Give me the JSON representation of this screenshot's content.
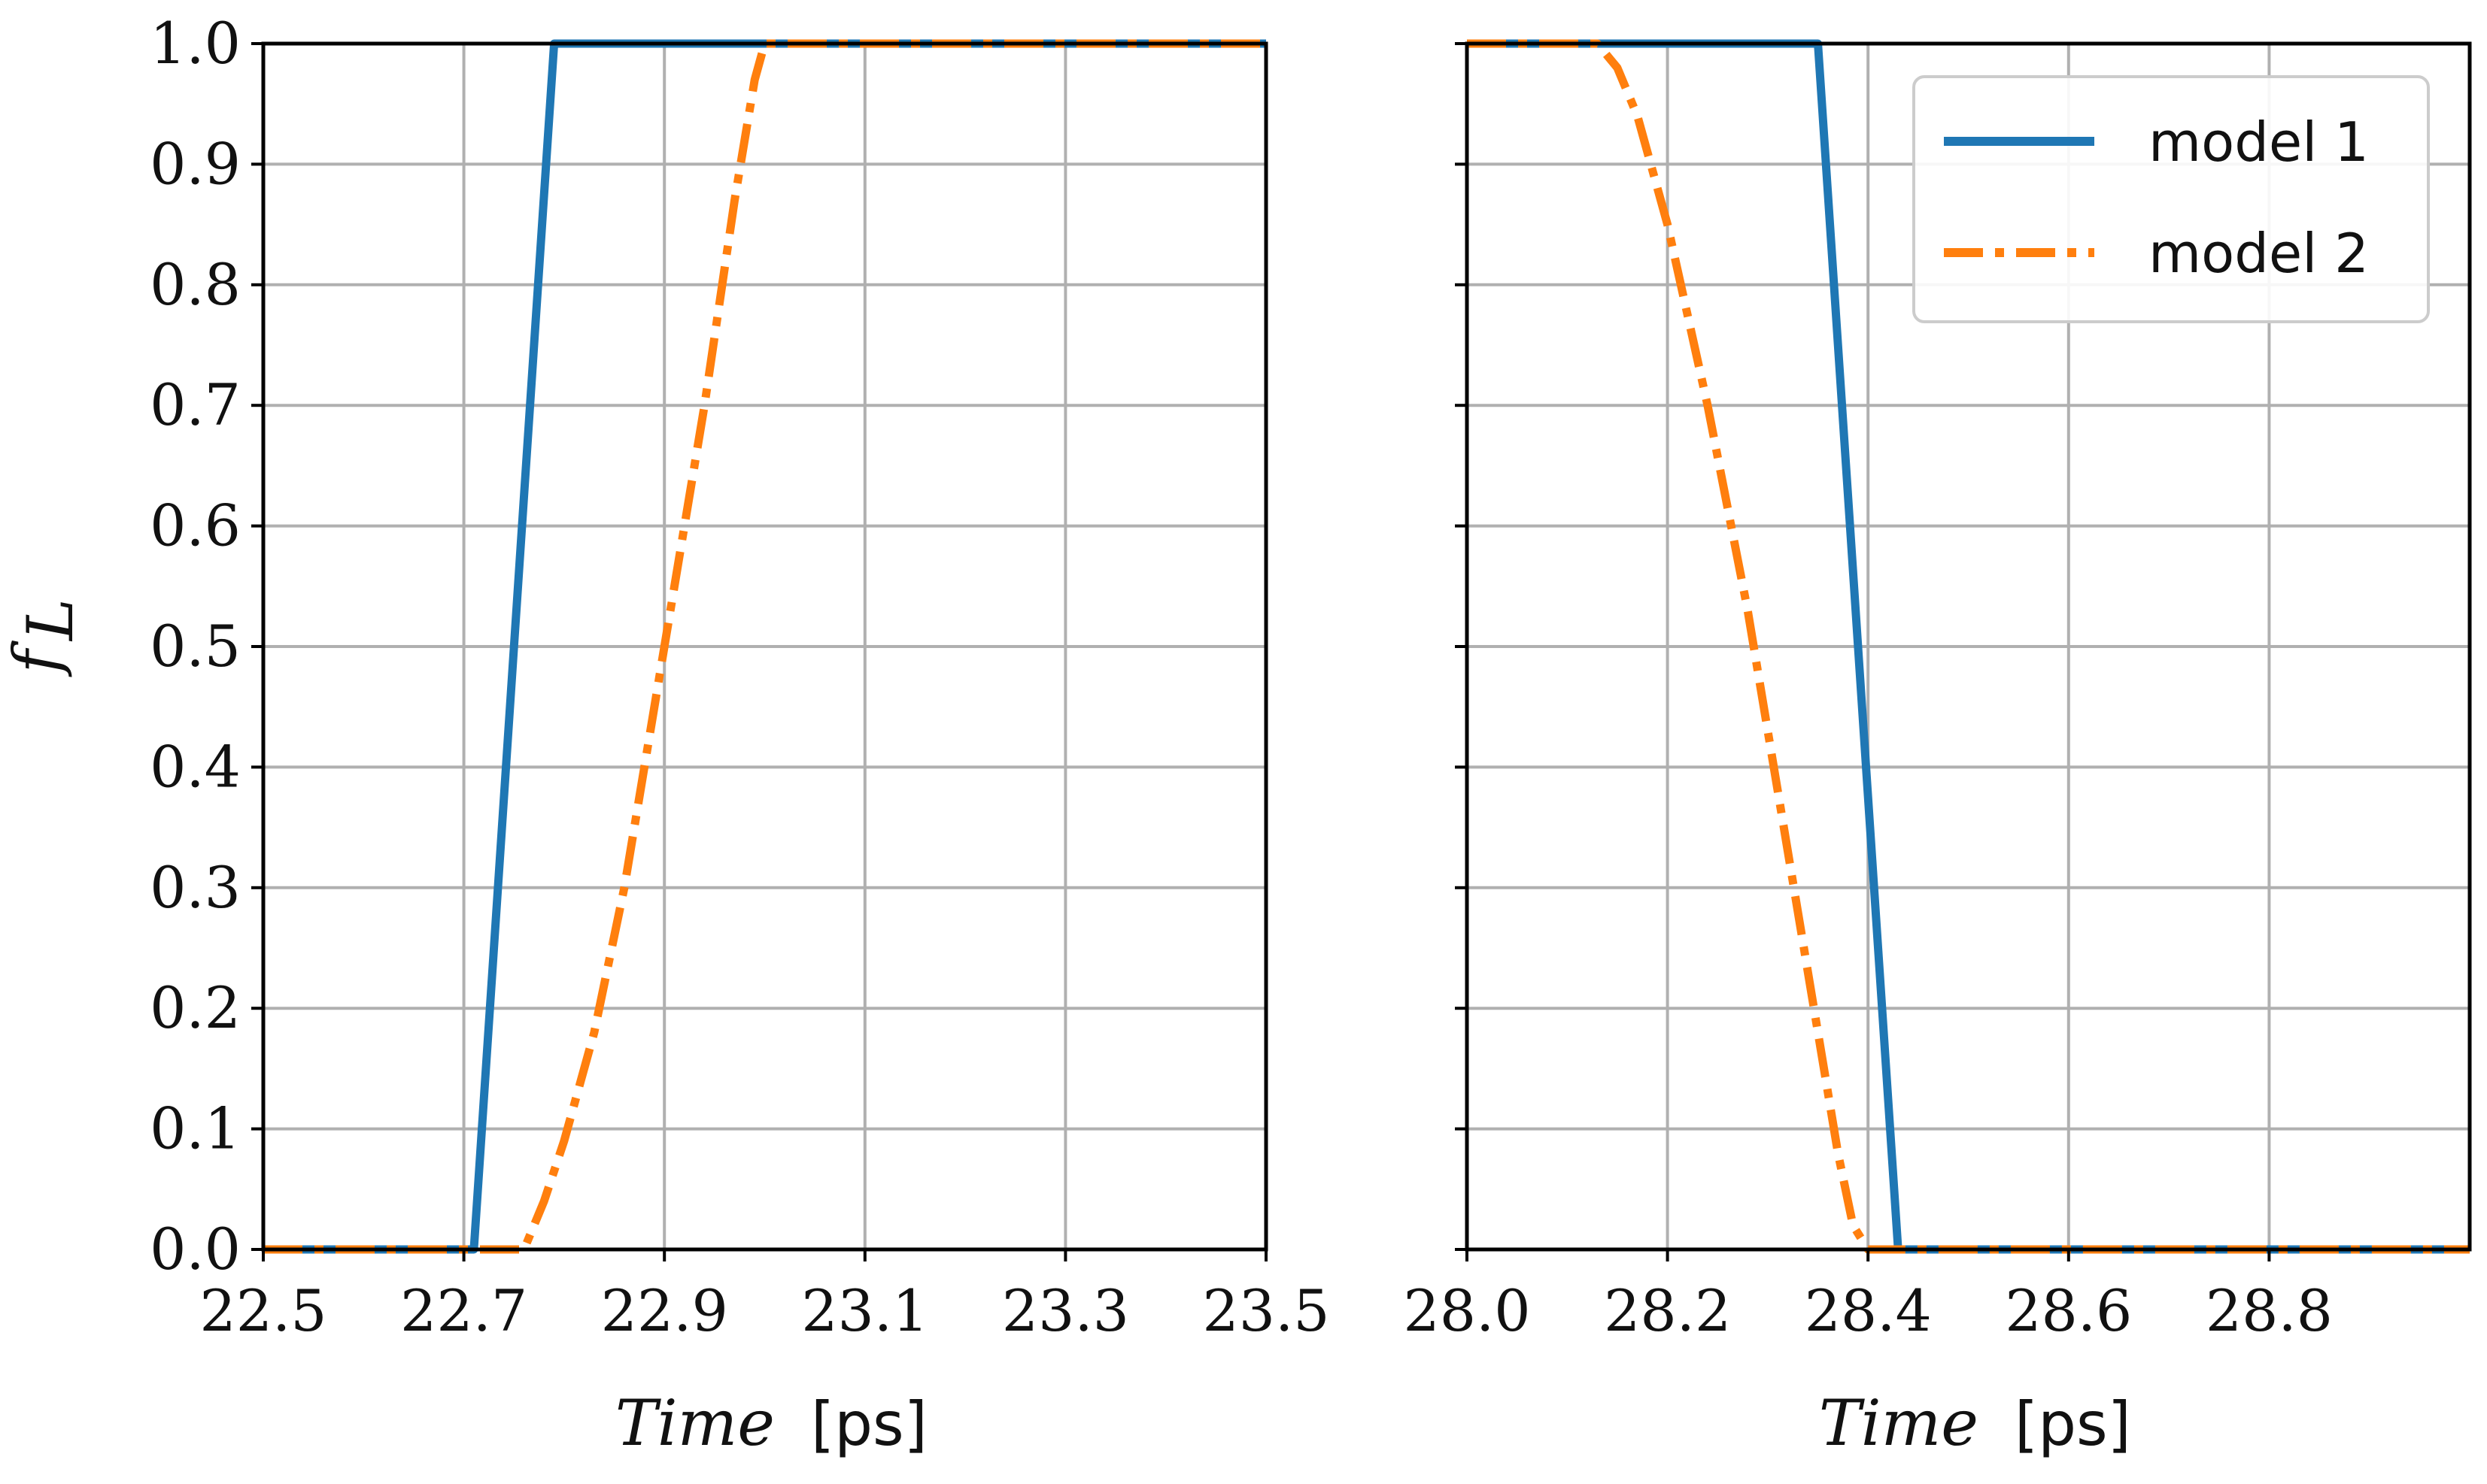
{
  "chart_data": [
    {
      "type": "line",
      "panel": "left",
      "xlabel_italic": "Time",
      "xlabel_unit": "[ps]",
      "ylabel_main": "f",
      "ylabel_sub": "L",
      "xlim": [
        22.5,
        23.5
      ],
      "ylim": [
        0.0,
        1.0
      ],
      "xticks": [
        "22.5",
        "22.7",
        "22.9",
        "23.1",
        "23.3",
        "23.5"
      ],
      "yticks": [
        "0.0",
        "0.1",
        "0.2",
        "0.3",
        "0.4",
        "0.5",
        "0.6",
        "0.7",
        "0.8",
        "0.9",
        "1.0"
      ],
      "grid": true,
      "series": [
        {
          "name": "model 1",
          "color": "#1f77b4",
          "style": "solid",
          "x": [
            22.5,
            22.71,
            22.79,
            23.5
          ],
          "y": [
            0.0,
            0.0,
            1.0,
            1.0
          ]
        },
        {
          "name": "model 2",
          "color": "#ff7f0e",
          "style": "dashdot",
          "x": [
            22.5,
            22.76,
            22.78,
            22.8,
            22.83,
            22.86,
            22.9,
            22.94,
            22.97,
            22.99,
            23.0,
            23.5
          ],
          "y": [
            0.0,
            0.0,
            0.04,
            0.09,
            0.18,
            0.3,
            0.5,
            0.7,
            0.87,
            0.97,
            1.0,
            1.0
          ]
        }
      ]
    },
    {
      "type": "line",
      "panel": "right",
      "xlabel_italic": "Time",
      "xlabel_unit": "[ps]",
      "xlim": [
        28.0,
        29.0
      ],
      "ylim": [
        0.0,
        1.0
      ],
      "xticks": [
        "28.0",
        "28.2",
        "28.4",
        "28.6",
        "28.8"
      ],
      "grid": true,
      "legend": "top-right",
      "series": [
        {
          "name": "model 1",
          "color": "#1f77b4",
          "style": "solid",
          "x": [
            28.0,
            28.35,
            28.43,
            29.0
          ],
          "y": [
            1.0,
            1.0,
            0.0,
            0.0
          ]
        },
        {
          "name": "model 2",
          "color": "#ff7f0e",
          "style": "dashdot",
          "x": [
            28.0,
            28.13,
            28.15,
            28.17,
            28.2,
            28.24,
            28.28,
            28.32,
            28.35,
            28.37,
            28.385,
            28.4,
            29.0
          ],
          "y": [
            1.0,
            1.0,
            0.98,
            0.94,
            0.85,
            0.7,
            0.53,
            0.33,
            0.18,
            0.08,
            0.02,
            0.0,
            0.0
          ]
        }
      ]
    }
  ]
}
